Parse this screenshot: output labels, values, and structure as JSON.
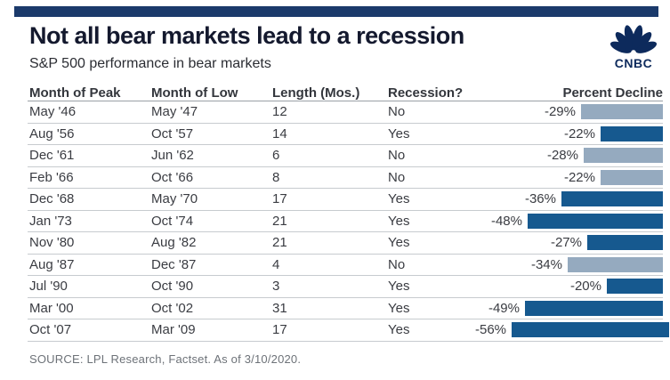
{
  "header": {
    "title": "Not all bear markets lead to a recession",
    "subtitle": "S&P 500 performance in bear markets",
    "logo_text": "CNBC"
  },
  "colors": {
    "brand_bar_navy": "#1b3a6b",
    "logo_navy": "#0d2a5c",
    "bar_recession_yes": "#16598f",
    "bar_recession_no": "#95aabf"
  },
  "table": {
    "columns": [
      "Month of Peak",
      "Month of Low",
      "Length (Mos.)",
      "Recession?",
      "Percent Decline"
    ],
    "rows": [
      {
        "peak": "May '46",
        "low": "May '47",
        "length": "12",
        "recession": "No",
        "decline_label": "-29%",
        "decline_value": 29
      },
      {
        "peak": "Aug '56",
        "low": "Oct '57",
        "length": "14",
        "recession": "Yes",
        "decline_label": "-22%",
        "decline_value": 22
      },
      {
        "peak": "Dec '61",
        "low": "Jun '62",
        "length": "6",
        "recession": "No",
        "decline_label": "-28%",
        "decline_value": 28
      },
      {
        "peak": "Feb '66",
        "low": "Oct '66",
        "length": "8",
        "recession": "No",
        "decline_label": "-22%",
        "decline_value": 22
      },
      {
        "peak": "Dec '68",
        "low": "May '70",
        "length": "17",
        "recession": "Yes",
        "decline_label": "-36%",
        "decline_value": 36
      },
      {
        "peak": "Jan '73",
        "low": "Oct '74",
        "length": "21",
        "recession": "Yes",
        "decline_label": "-48%",
        "decline_value": 48
      },
      {
        "peak": "Nov '80",
        "low": "Aug '82",
        "length": "21",
        "recession": "Yes",
        "decline_label": "-27%",
        "decline_value": 27
      },
      {
        "peak": "Aug '87",
        "low": "Dec '87",
        "length": "4",
        "recession": "No",
        "decline_label": "-34%",
        "decline_value": 34
      },
      {
        "peak": "Jul '90",
        "low": "Oct '90",
        "length": "3",
        "recession": "Yes",
        "decline_label": "-20%",
        "decline_value": 20
      },
      {
        "peak": "Mar '00",
        "low": "Oct '02",
        "length": "31",
        "recession": "Yes",
        "decline_label": "-49%",
        "decline_value": 49
      },
      {
        "peak": "Oct '07",
        "low": "Mar '09",
        "length": "17",
        "recession": "Yes",
        "decline_label": "-56%",
        "decline_value": 56
      }
    ]
  },
  "source": "SOURCE: LPL Research, Factset. As of 3/10/2020.",
  "chart_data": {
    "type": "bar",
    "orientation": "horizontal",
    "title": "Not all bear markets lead to a recession",
    "subtitle": "S&P 500 performance in bear markets",
    "categories": [
      "May '46",
      "Aug '56",
      "Dec '61",
      "Feb '66",
      "Dec '68",
      "Jan '73",
      "Nov '80",
      "Aug '87",
      "Jul '90",
      "Mar '00",
      "Oct '07"
    ],
    "series": [
      {
        "name": "Percent Decline",
        "values": [
          -29,
          -22,
          -28,
          -22,
          -36,
          -48,
          -27,
          -34,
          -20,
          -49,
          -56
        ]
      },
      {
        "name": "Length (Mos.)",
        "values": [
          12,
          14,
          6,
          8,
          17,
          21,
          21,
          4,
          3,
          31,
          17
        ]
      }
    ],
    "month_of_low": [
      "May '47",
      "Oct '57",
      "Jun '62",
      "Oct '66",
      "May '70",
      "Oct '74",
      "Aug '82",
      "Dec '87",
      "Oct '90",
      "Oct '02",
      "Mar '09"
    ],
    "recession": [
      "No",
      "Yes",
      "No",
      "No",
      "Yes",
      "Yes",
      "Yes",
      "No",
      "Yes",
      "Yes",
      "Yes"
    ],
    "bar_color_by_recession": {
      "Yes": "#16598f",
      "No": "#95aabf"
    },
    "value_range": [
      -56,
      0
    ],
    "grid": false,
    "legend": false,
    "source": "SOURCE: LPL Research, Factset. As of 3/10/2020."
  }
}
